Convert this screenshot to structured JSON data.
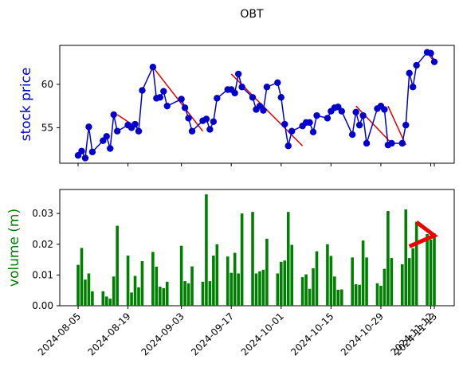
{
  "chart_data": [
    {
      "type": "line",
      "title": "OBT",
      "ylabel": "stock price",
      "ylabel_color": "#0000cc",
      "line_color": "#0000cc",
      "trend_color": "#dd0000",
      "yticks": [
        55,
        60
      ],
      "ylim": [
        50.9,
        64.5
      ],
      "x": [
        "2024-08-05",
        "2024-08-06",
        "2024-08-07",
        "2024-08-08",
        "2024-08-09",
        "2024-08-12",
        "2024-08-13",
        "2024-08-14",
        "2024-08-15",
        "2024-08-16",
        "2024-08-19",
        "2024-08-20",
        "2024-08-21",
        "2024-08-22",
        "2024-08-23",
        "2024-08-26",
        "2024-08-27",
        "2024-08-28",
        "2024-08-29",
        "2024-08-30",
        "2024-09-03",
        "2024-09-04",
        "2024-09-05",
        "2024-09-06",
        "2024-09-09",
        "2024-09-10",
        "2024-09-11",
        "2024-09-12",
        "2024-09-13",
        "2024-09-16",
        "2024-09-17",
        "2024-09-18",
        "2024-09-19",
        "2024-09-20",
        "2024-09-23",
        "2024-09-24",
        "2024-09-25",
        "2024-09-26",
        "2024-09-27",
        "2024-09-30",
        "2024-10-01",
        "2024-10-02",
        "2024-10-03",
        "2024-10-04",
        "2024-10-07",
        "2024-10-08",
        "2024-10-09",
        "2024-10-10",
        "2024-10-11",
        "2024-10-14",
        "2024-10-15",
        "2024-10-16",
        "2024-10-17",
        "2024-10-18",
        "2024-10-21",
        "2024-10-22",
        "2024-10-23",
        "2024-10-24",
        "2024-10-25",
        "2024-10-28",
        "2024-10-29",
        "2024-10-30",
        "2024-10-31",
        "2024-11-01",
        "2024-11-04",
        "2024-11-05",
        "2024-11-06",
        "2024-11-07",
        "2024-11-08",
        "2024-11-11",
        "2024-11-12",
        "2024-11-13"
      ],
      "values": [
        51.8,
        52.3,
        51.5,
        55.1,
        52.2,
        53.5,
        54.0,
        52.6,
        56.5,
        54.6,
        55.3,
        55.0,
        55.4,
        54.6,
        59.3,
        62.0,
        58.4,
        58.5,
        59.2,
        57.5,
        58.3,
        57.3,
        56.1,
        54.6,
        55.8,
        56.0,
        54.8,
        55.7,
        58.4,
        59.4,
        59.4,
        59.0,
        61.2,
        59.7,
        58.5,
        57.1,
        57.5,
        57.0,
        59.7,
        60.2,
        58.5,
        55.4,
        52.9,
        54.6,
        55.2,
        55.6,
        55.6,
        54.5,
        56.4,
        56.1,
        56.9,
        57.3,
        57.4,
        56.9,
        54.2,
        56.8,
        55.3,
        56.4,
        53.2,
        57.2,
        57.5,
        57.1,
        53.0,
        53.2,
        53.2,
        55.3,
        61.3,
        59.7,
        62.2,
        63.7,
        63.6,
        62.6
      ],
      "trend_segments": [
        [
          [
            "2024-08-16",
            56.5
          ],
          [
            "2024-08-23",
            54.6
          ]
        ],
        [
          [
            "2024-08-26",
            62.0
          ],
          [
            "2024-09-09",
            54.6
          ]
        ],
        [
          [
            "2024-09-17",
            61.2
          ],
          [
            "2024-10-07",
            52.9
          ]
        ],
        [
          [
            "2024-10-22",
            57.5
          ],
          [
            "2024-11-01",
            53.2
          ]
        ],
        [
          [
            "2024-10-31",
            57.5
          ],
          [
            "2024-11-05",
            53.0
          ]
        ],
        [
          [
            "2024-11-11",
            63.7
          ],
          [
            "2024-11-13",
            62.6
          ]
        ]
      ]
    },
    {
      "type": "bar",
      "ylabel": "volume (m)",
      "ylabel_color": "#008000",
      "bar_color": "#008000",
      "arrow_color": "#ee0000",
      "yticks": [
        "0.00",
        "0.01",
        "0.02",
        "0.03"
      ],
      "ylim": [
        0,
        0.0378
      ],
      "x": [
        "2024-08-05",
        "2024-08-06",
        "2024-08-07",
        "2024-08-08",
        "2024-08-09",
        "2024-08-12",
        "2024-08-13",
        "2024-08-14",
        "2024-08-15",
        "2024-08-16",
        "2024-08-19",
        "2024-08-20",
        "2024-08-21",
        "2024-08-22",
        "2024-08-23",
        "2024-08-26",
        "2024-08-27",
        "2024-08-28",
        "2024-08-29",
        "2024-08-30",
        "2024-09-03",
        "2024-09-04",
        "2024-09-05",
        "2024-09-06",
        "2024-09-09",
        "2024-09-10",
        "2024-09-11",
        "2024-09-12",
        "2024-09-13",
        "2024-09-16",
        "2024-09-17",
        "2024-09-18",
        "2024-09-19",
        "2024-09-20",
        "2024-09-23",
        "2024-09-24",
        "2024-09-25",
        "2024-09-26",
        "2024-09-27",
        "2024-09-30",
        "2024-10-01",
        "2024-10-02",
        "2024-10-03",
        "2024-10-04",
        "2024-10-07",
        "2024-10-08",
        "2024-10-09",
        "2024-10-10",
        "2024-10-11",
        "2024-10-14",
        "2024-10-15",
        "2024-10-16",
        "2024-10-17",
        "2024-10-18",
        "2024-10-21",
        "2024-10-22",
        "2024-10-23",
        "2024-10-24",
        "2024-10-25",
        "2024-10-28",
        "2024-10-29",
        "2024-10-30",
        "2024-10-31",
        "2024-11-01",
        "2024-11-04",
        "2024-11-05",
        "2024-11-06",
        "2024-11-07",
        "2024-11-08",
        "2024-11-11",
        "2024-11-12",
        "2024-11-13"
      ],
      "values": [
        0.0133,
        0.0188,
        0.0085,
        0.0105,
        0.0047,
        0.0047,
        0.003,
        0.0023,
        0.0095,
        0.026,
        0.0163,
        0.0043,
        0.0097,
        0.006,
        0.0145,
        0.0175,
        0.0127,
        0.0062,
        0.0057,
        0.0078,
        0.0195,
        0.008,
        0.0073,
        0.0128,
        0.0078,
        0.0362,
        0.008,
        0.0163,
        0.02,
        0.016,
        0.0107,
        0.0172,
        0.0105,
        0.03,
        0.0305,
        0.0105,
        0.0112,
        0.0117,
        0.0218,
        0.0105,
        0.0143,
        0.0147,
        0.0305,
        0.0198,
        0.0093,
        0.0102,
        0.0055,
        0.0122,
        0.0177,
        0.02,
        0.0162,
        0.0095,
        0.0052,
        0.0053,
        0.0157,
        0.007,
        0.0068,
        0.0212,
        0.0157,
        0.0073,
        0.0065,
        0.012,
        0.0308,
        0.0155,
        0.0135,
        0.0313,
        0.0155,
        0.0187,
        0.0273,
        0.0233,
        0.0215,
        0.0235
      ],
      "arrow": [
        [
          "2024-11-06",
          0.0193
        ],
        [
          "2024-11-13",
          0.0228
        ],
        [
          "2024-11-08",
          0.0272
        ]
      ]
    }
  ],
  "xaxis": {
    "tick_labels": [
      "2024-08-05",
      "2024-08-19",
      "2024-09-03",
      "2024-09-17",
      "2024-10-01",
      "2024-10-15",
      "2024-10-29",
      "2024-11-12",
      "2024-11-13"
    ]
  }
}
